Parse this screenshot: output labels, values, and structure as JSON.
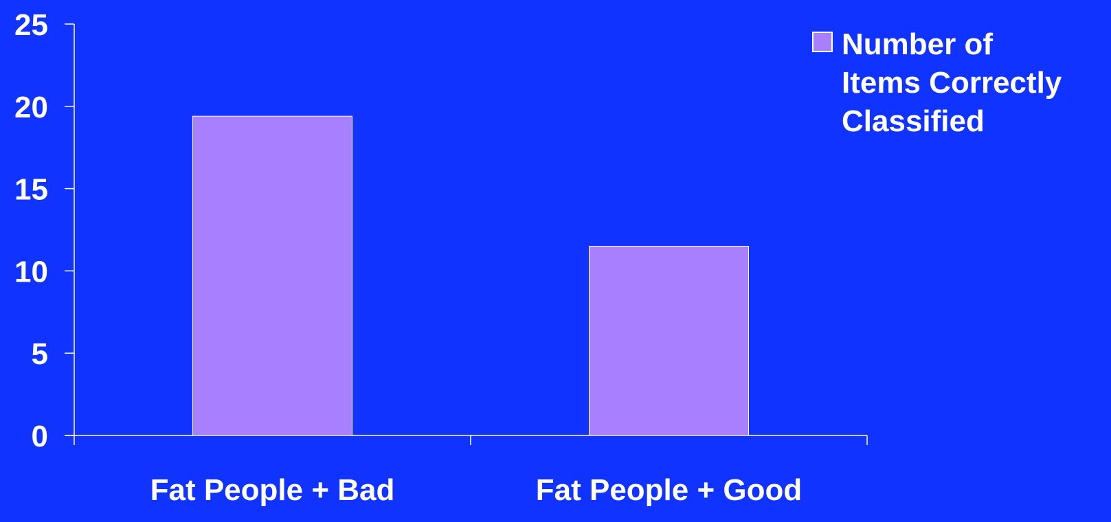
{
  "chart_data": {
    "type": "bar",
    "categories": [
      "Fat People + Bad",
      "Fat People + Good"
    ],
    "series": [
      {
        "name": "Number of Items Correctly Classified",
        "values": [
          19.4,
          11.5
        ]
      }
    ],
    "ylim": [
      0,
      25
    ],
    "yticks": [
      0,
      5,
      10,
      15,
      20,
      25
    ],
    "legend_lines": [
      "Number of",
      "Items Correctly",
      "Classified"
    ],
    "legend_position": "top-right",
    "grid": false,
    "colors": {
      "background": "#1133ff",
      "bar": "#a87fff",
      "bar_edge": "#ffffff",
      "axis": "#ffffff",
      "text": "#ffffff"
    }
  }
}
